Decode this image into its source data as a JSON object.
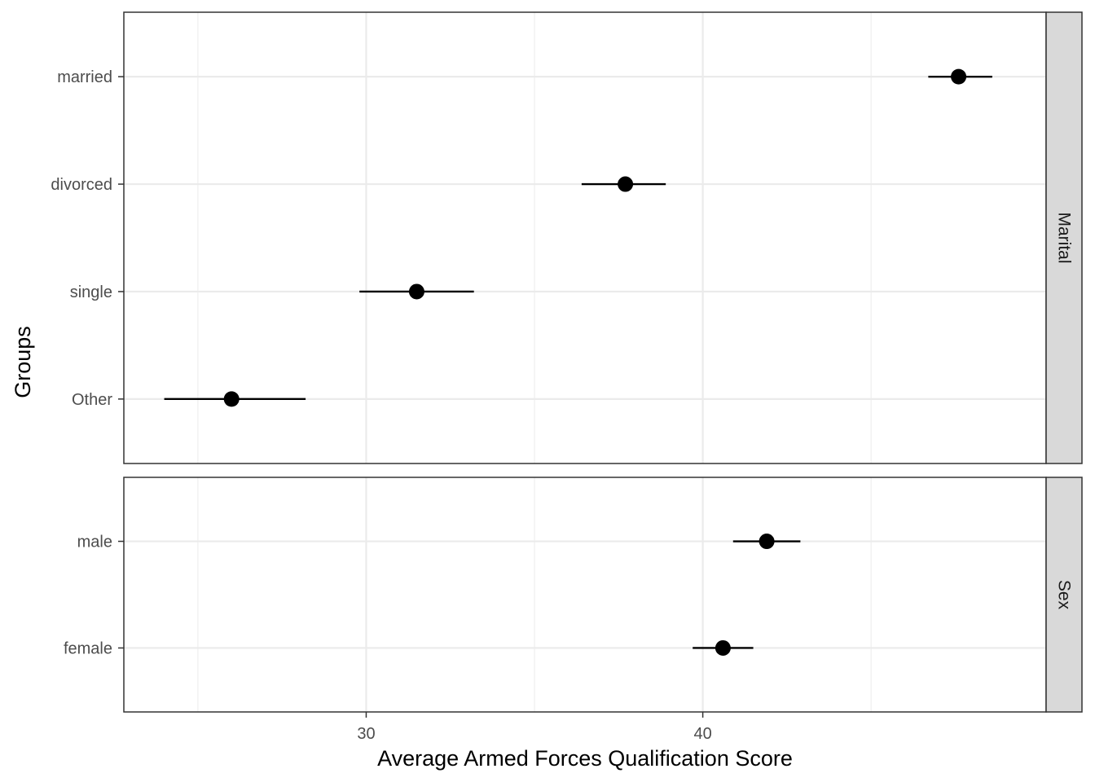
{
  "chart_data": {
    "type": "scatter",
    "subtype": "point-range",
    "xlabel": "Average Armed Forces Qualification Score",
    "ylabel": "Groups",
    "xlim": [
      22.8,
      50.2
    ],
    "x_ticks": [
      30,
      40
    ],
    "grid": true,
    "panels": [
      {
        "facet": "Marital",
        "categories": [
          "Other",
          "single",
          "divorced",
          "married"
        ],
        "estimates": [
          26.0,
          31.5,
          37.7,
          47.6
        ],
        "lower": [
          24.0,
          29.8,
          36.4,
          46.7
        ],
        "upper": [
          28.2,
          33.2,
          38.9,
          48.6
        ]
      },
      {
        "facet": "Sex",
        "categories": [
          "female",
          "male"
        ],
        "estimates": [
          40.6,
          41.9
        ],
        "lower": [
          39.7,
          40.9
        ],
        "upper": [
          41.5,
          42.9
        ]
      }
    ],
    "colors": {
      "point": "#000000",
      "panel_border": "#333333",
      "strip_fill": "#d9d9d9",
      "grid": "#ebebeb"
    }
  }
}
